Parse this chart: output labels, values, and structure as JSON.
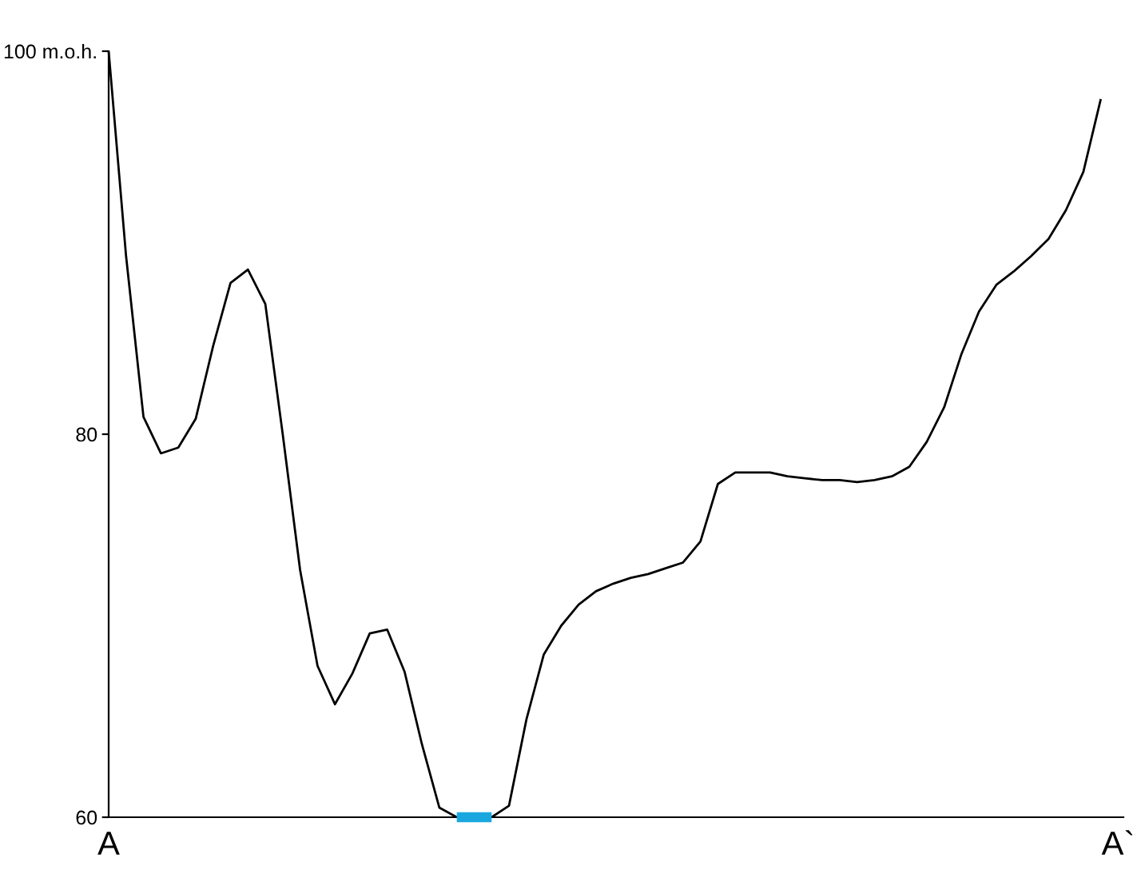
{
  "chart_data": {
    "type": "line",
    "categories": [
      "A",
      null,
      null,
      null,
      null,
      null,
      null,
      null,
      null,
      null,
      null,
      null,
      null,
      null,
      null,
      null,
      null,
      null,
      null,
      null,
      null,
      null,
      null,
      null,
      null,
      null,
      null,
      null,
      null,
      null,
      null,
      null,
      null,
      null,
      null,
      null,
      null,
      null,
      null,
      null,
      null,
      null,
      null,
      null,
      null,
      null,
      null,
      null,
      null,
      null,
      null,
      null,
      null,
      null,
      null,
      null,
      null,
      null,
      "A`"
    ],
    "series": [
      {
        "color": "#000000",
        "values": [
          100,
          89.3,
          80.9,
          79.0,
          79.3,
          80.8,
          84.6,
          87.9,
          88.6,
          86.8,
          80.0,
          72.9,
          67.9,
          65.9,
          67.5,
          69.6,
          69.8,
          67.6,
          63.8,
          60.5,
          60,
          null,
          60,
          60.6,
          65.1,
          68.5,
          70.0,
          71.1,
          71.8,
          72.2,
          72.5,
          72.7,
          73.0,
          73.3,
          74.4,
          77.4,
          78.0,
          78.0,
          78.0,
          77.8,
          77.7,
          77.6,
          77.6,
          77.5,
          77.6,
          77.8,
          78.3,
          79.6,
          81.4,
          84.2,
          86.4,
          87.8,
          88.5,
          89.3,
          90.2,
          91.7,
          93.7,
          97.5,
          null
        ]
      },
      {
        "color": "#1aa7e0",
        "values": [
          null,
          null,
          null,
          null,
          null,
          null,
          null,
          null,
          null,
          null,
          null,
          null,
          null,
          null,
          null,
          null,
          null,
          null,
          null,
          null,
          60,
          60,
          60,
          null,
          null,
          null,
          null,
          null,
          null,
          null,
          null,
          null,
          null,
          null,
          null,
          null,
          null,
          null,
          null,
          null,
          null,
          null,
          null,
          null,
          null,
          null,
          null,
          null,
          null,
          null,
          null,
          null,
          null,
          null,
          null,
          null,
          null,
          null,
          null
        ]
      }
    ],
    "ylim": [
      60,
      100
    ],
    "yticks": [
      60,
      80,
      {
        "value": 100,
        "label": "100 m.o.h."
      }
    ],
    "grid": false,
    "marker": "none",
    "line_style": "solid"
  }
}
